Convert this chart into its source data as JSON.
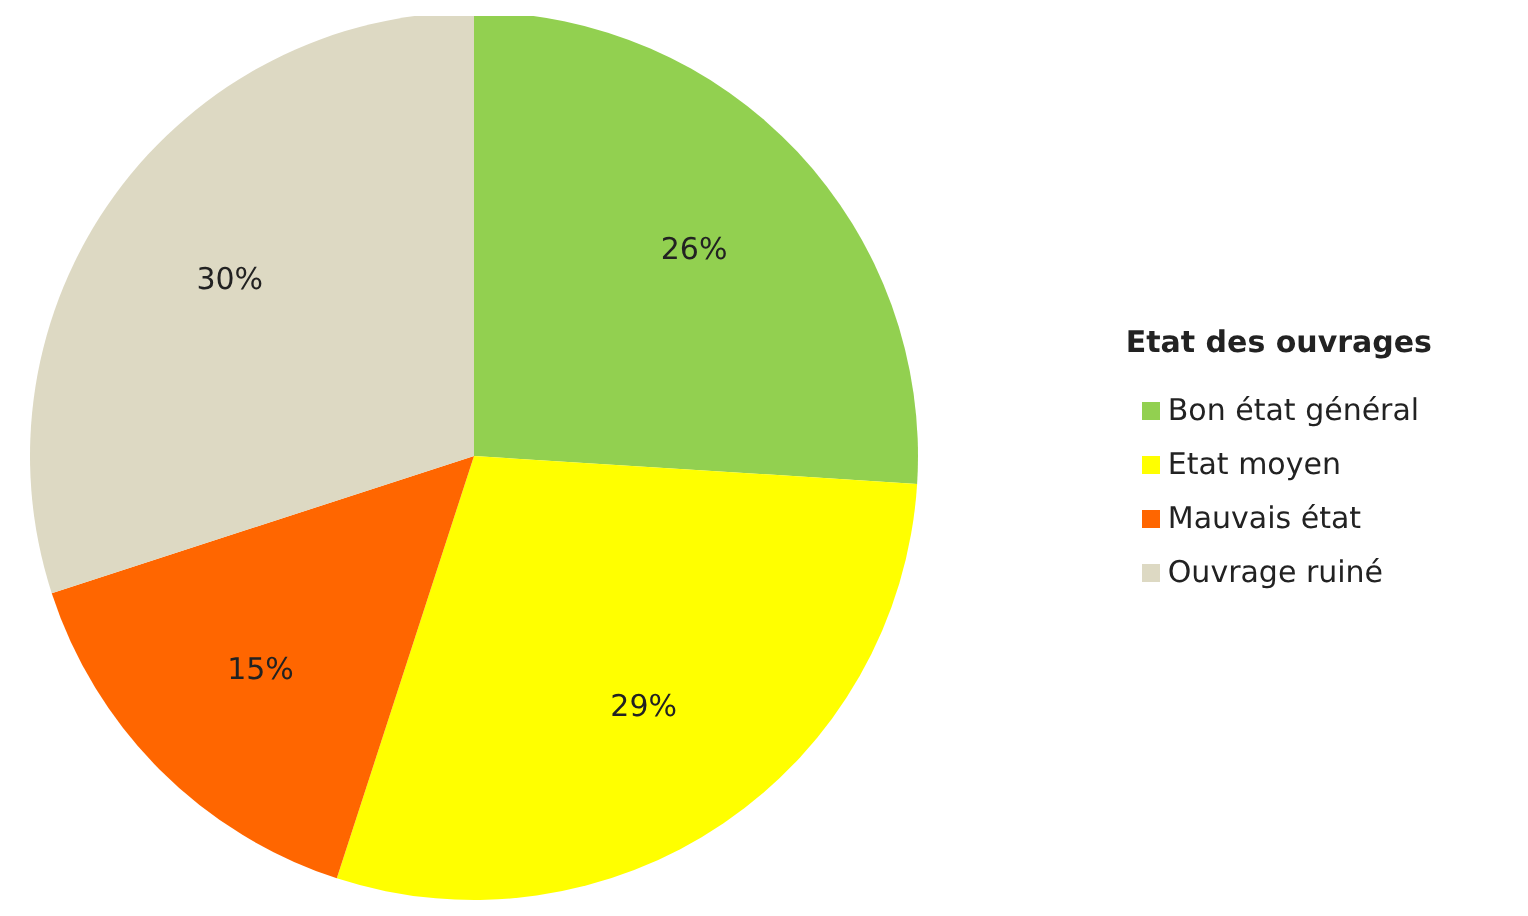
{
  "chart_data": {
    "type": "pie",
    "legend_title": "Etat des ouvrages",
    "legend": "right",
    "categories": [
      "Bon état général",
      "Etat moyen",
      "Mauvais état",
      "Ouvrage ruiné"
    ],
    "values": [
      26,
      29,
      15,
      30
    ],
    "colors": [
      "#92d050",
      "#ffff00",
      "#ff6600",
      "#ddd9c3"
    ],
    "value_labels": [
      "26%",
      "29%",
      "15%",
      "30%"
    ]
  }
}
